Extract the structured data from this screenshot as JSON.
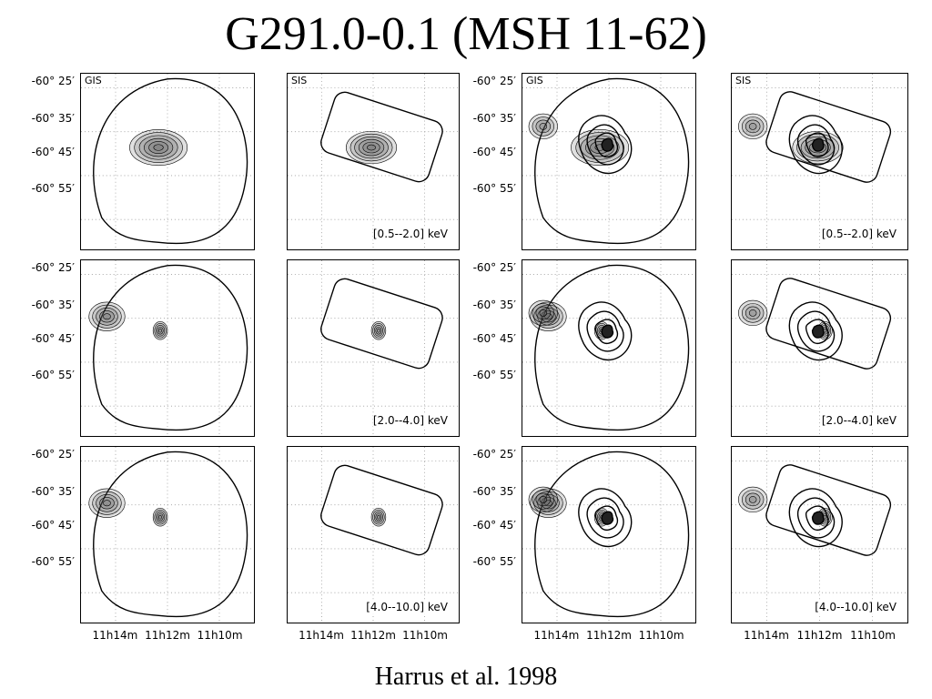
{
  "title": "G291.0-0.1 (MSH 11-62)",
  "caption": "Harrus et al. 1998",
  "panel_labels": {
    "gis": "GIS",
    "sis": "SIS"
  },
  "energy_bands": [
    "[0.5--2.0] keV",
    "[2.0--4.0] keV",
    "[4.0--10.0] keV"
  ],
  "y_ticks": [
    "-60° 25′",
    "-60° 35′",
    "-60° 45′",
    "-60° 55′"
  ],
  "x_ticks": [
    "11h14m",
    "11h12m",
    "11h10m"
  ],
  "colors": {
    "ink": "#000000",
    "grid": "#9a9a9a",
    "shade": "#555555"
  }
}
